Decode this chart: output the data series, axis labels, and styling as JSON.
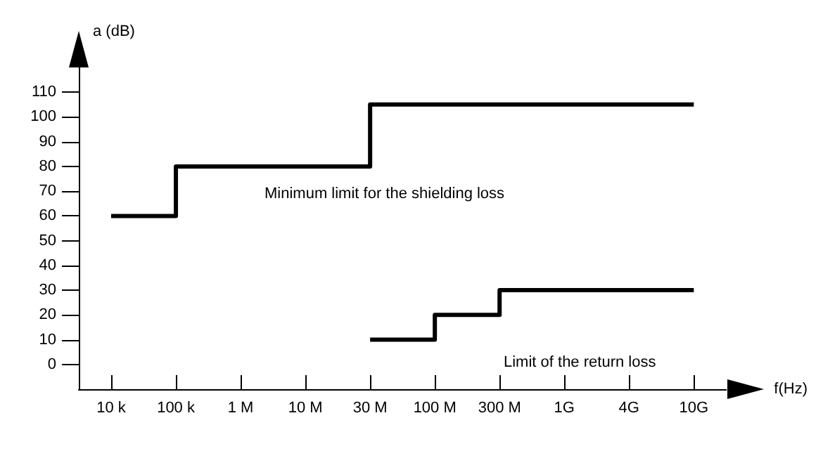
{
  "chart_data": {
    "type": "step",
    "xlabel": "f(Hz)",
    "ylabel": "a (dB)",
    "categories": [
      "10 k",
      "100 k",
      "1 M",
      "10 M",
      "30 M",
      "100 M",
      "300 M",
      "1G",
      "4G",
      "10G"
    ],
    "series": [
      {
        "color": "#000000",
        "values": [
          60,
          80,
          80,
          80,
          105,
          105,
          105,
          105,
          105,
          105
        ]
      },
      {
        "color": "#000000",
        "values": [
          null,
          null,
          null,
          null,
          10,
          20,
          30,
          30,
          30,
          30
        ]
      }
    ],
    "ylim": [
      -10,
      120
    ],
    "yticks": [
      0,
      10,
      20,
      30,
      40,
      50,
      60,
      70,
      80,
      90,
      100,
      110
    ],
    "grid": false,
    "marker": "none",
    "line_style": "solid",
    "annotations": [
      "Minimum limit for the shielding loss",
      "Limit of the return loss"
    ]
  }
}
